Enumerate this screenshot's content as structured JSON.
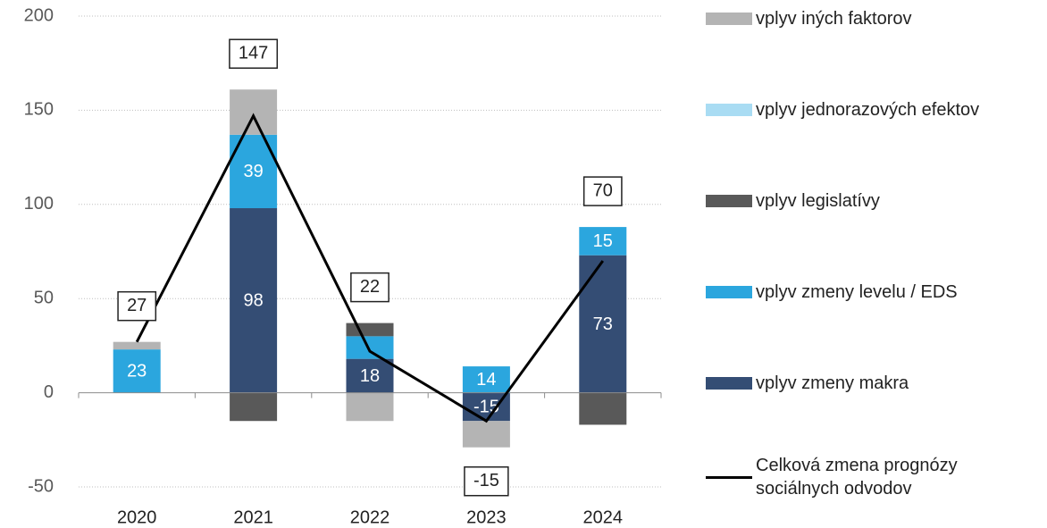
{
  "chart_data": {
    "type": "stacked-bar-line",
    "categories": [
      "2020",
      "2021",
      "2022",
      "2023",
      "2024"
    ],
    "series": [
      {
        "name": "vplyv zmeny makra",
        "color": "#344d74",
        "values": [
          0,
          98,
          18,
          -15,
          73
        ],
        "value_labels": [
          null,
          "98",
          "18",
          "-15",
          "73"
        ]
      },
      {
        "name": "vplyv zmeny levelu / EDS",
        "color": "#2ba6de",
        "values": [
          23,
          39,
          12,
          14,
          15
        ],
        "value_labels": [
          "23",
          "39",
          null,
          "14",
          "15"
        ]
      },
      {
        "name": "vplyv legislatívy",
        "color": "#595959",
        "values": [
          0,
          -15,
          7,
          0,
          -17
        ]
      },
      {
        "name": "vplyv jednorazových efektov",
        "color": "#a9dcf3",
        "values": [
          0,
          0,
          0,
          0,
          0
        ]
      },
      {
        "name": "vplyv iných faktorov",
        "color": "#b4b4b4",
        "values": [
          4,
          24,
          -15,
          -14,
          0
        ]
      }
    ],
    "line": {
      "name": "Celková zmena prognózy sociálnych odvodov",
      "color": "#000000",
      "values": [
        27,
        147,
        22,
        -15,
        70
      ]
    },
    "ylim": [
      -50,
      200
    ],
    "yticks": [
      -50,
      0,
      50,
      100,
      150,
      200
    ],
    "grid": true
  }
}
